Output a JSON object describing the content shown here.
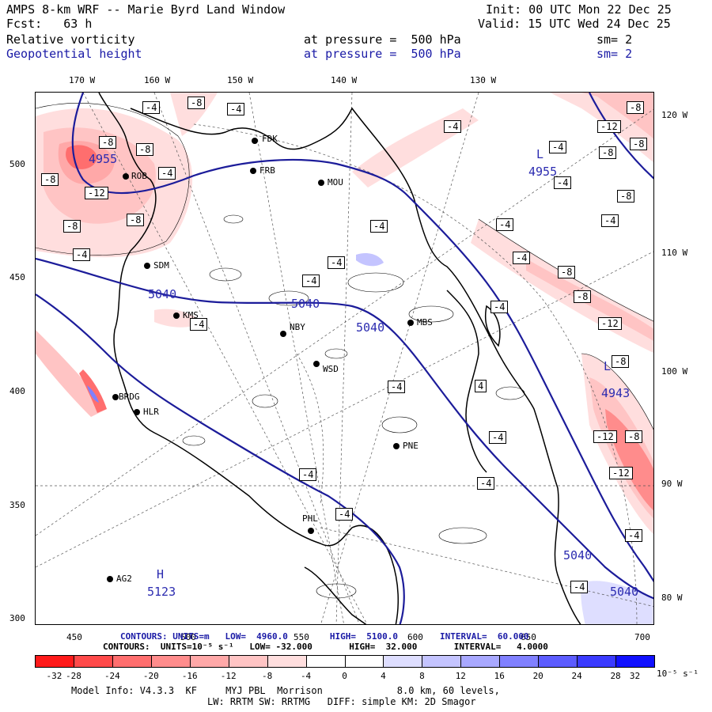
{
  "header": {
    "title": "AMPS 8-km WRF -- Marie Byrd Land Window",
    "init": "Init: 00 UTC Mon 22 Dec 25",
    "forecast": "Fcst:   63 h",
    "valid": "Valid: 15 UTC Wed 24 Dec 25",
    "field1_name": "Relative vorticity",
    "field1_level": "at pressure =  500 hPa",
    "field1_sm": "sm= 2",
    "field2_name": "Geopotential height",
    "field2_level": "at pressure =  500 hPa",
    "field2_sm": "sm= 2"
  },
  "axes": {
    "top_lon": [
      "170 W",
      "160 W",
      "150 W",
      "140 W",
      "130 W"
    ],
    "right_lon": [
      "120 W",
      "110 W",
      "100 W",
      "90 W",
      "80 W"
    ],
    "left_y": [
      "500",
      "450",
      "400",
      "350",
      "300"
    ],
    "bottom_x": [
      "450",
      "500",
      "550",
      "600",
      "650",
      "700"
    ]
  },
  "stations": [
    "FDK",
    "FRB",
    "ROB",
    "MOU",
    "SDM",
    "KMS",
    "NBY",
    "MBS",
    "WSD",
    "BRDG",
    "HLR",
    "PNE",
    "PHL",
    "AG2"
  ],
  "height_labels": [
    "4955",
    "4955",
    "5040",
    "5040",
    "5040",
    "5040",
    "5040",
    "4943",
    "5123",
    "H",
    "L",
    "L"
  ],
  "vorticity_labels": [
    "-4",
    "-8",
    "-4",
    "-8",
    "-8",
    "-8",
    "-4",
    "-12",
    "-8",
    "-4",
    "-4",
    "-4",
    "-4",
    "-4",
    "-8",
    "-4",
    "-12",
    "-8",
    "-8",
    "-4",
    "-8",
    "-8",
    "-4",
    "-4",
    "-4",
    "-4",
    "-4",
    "-4",
    "-4",
    "-4",
    "-4",
    "-4",
    "-8",
    "-8",
    "-12",
    "-8",
    "-12",
    "-8",
    "-12",
    "-4",
    "-4",
    "4"
  ],
  "contour_info": {
    "line1": "CONTOURS: UNITS=m   LOW=  4960.0        HIGH=  5100.0        INTERVAL=  60.000",
    "line2": "CONTOURS:  UNITS=10⁻⁵ s⁻¹   LOW= -32.000       HIGH=  32.000       INTERVAL=   4.0000"
  },
  "colorbar": {
    "ticks": [
      "-32",
      "-28",
      "-24",
      "-20",
      "-16",
      "-12",
      "-8",
      "-4",
      "0",
      "4",
      "8",
      "12",
      "16",
      "20",
      "24",
      "28",
      "32"
    ],
    "unit": "10⁻⁵ s⁻¹",
    "colors": [
      "#ff1a1a",
      "#ff4a4a",
      "#ff6e6e",
      "#ff8c8c",
      "#ffa8a8",
      "#ffc4c4",
      "#ffdede",
      "#ffffff",
      "#ffffff",
      "#ffffff",
      "#dedeff",
      "#c4c4ff",
      "#a8a8ff",
      "#8080ff",
      "#5c5cff",
      "#3a3aff",
      "#1010ff"
    ]
  },
  "footer": {
    "line1": "Model Info: V4.3.3  KF     MYJ PBL  Morrison             8.0 km, 60 levels,",
    "line2": "LW: RRTM SW: RRTMG   DIFF: simple KM: 2D Smagor"
  }
}
